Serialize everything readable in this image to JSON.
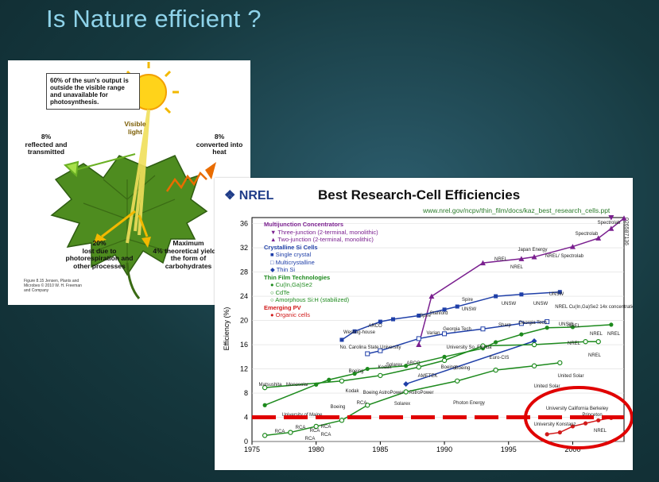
{
  "slide": {
    "title": "Is Nature efficient ?"
  },
  "leaf": {
    "callout": "60% of the sun's output is outside the visible range and unavailable for photosynthesis.",
    "visible_light": "Visible light",
    "reflected_pct": "8%",
    "reflected_text": "reflected and transmitted",
    "heat_pct": "8%",
    "heat_text": "converted into heat",
    "lost_pct": "20%",
    "lost_text": "lost due to photorespiration and other processes",
    "max_title": "Maximum",
    "max_text": "4% theoretical yield in the form of carbohydrates",
    "caption": "Figure 8.15 Jensen, Plants and Microbes © 2010 W. H. Freeman and Company"
  },
  "nrel": {
    "logo": "NREL",
    "title": "Best Research-Cell Efficiencies",
    "url": "www.nrel.gov/ncpv/thin_film/docs/kaz_best_research_cells.ppt",
    "side_id": "026587136",
    "legend": [
      {
        "heading": "Multijunction Concentrators",
        "color": "#7a1f8f",
        "items": [
          "Three-junction (2-terminal, monolithic)",
          "Two-junction (2-terminal, monolithic)"
        ]
      },
      {
        "heading": "Crystalline Si Cells",
        "color": "#1f3fa8",
        "items": [
          "Single crystal",
          "Multicrystalline",
          "Thin Si"
        ]
      },
      {
        "heading": "Thin Film Technologies",
        "color": "#1d8a1d",
        "items": [
          "Cu(In,Ga)Se2",
          "CdTe",
          "Amorphous Si:H (stabilized)"
        ]
      },
      {
        "heading": "Emerging PV",
        "color": "#d11a1a",
        "items": [
          "Organic cells"
        ]
      }
    ]
  },
  "chart_data": {
    "type": "line",
    "title": "Best Research-Cell Efficiencies",
    "xlabel": "",
    "ylabel": "Efficiency (%)",
    "xlim": [
      1975,
      2004
    ],
    "ylim": [
      0,
      37
    ],
    "xticks": [
      "1975",
      "1980",
      "1985",
      "1990",
      "1995",
      "2000"
    ],
    "yticks": [
      "0",
      "4",
      "8",
      "12",
      "16",
      "20",
      "24",
      "28",
      "32",
      "36"
    ],
    "series": [
      {
        "name": "Three-junction (2-terminal, monolithic)",
        "color": "#7a1f8f",
        "points": [
          [
            2003,
            37.0
          ]
        ]
      },
      {
        "name": "Two-junction (2-terminal, monolithic)",
        "color": "#7a1f8f",
        "points": [
          [
            1988,
            16.0
          ],
          [
            1989,
            24.0
          ],
          [
            1993,
            29.5
          ],
          [
            1996,
            30.2
          ],
          [
            1997,
            30.5
          ],
          [
            2000,
            32.2
          ],
          [
            2002,
            33.6
          ],
          [
            2003,
            35.2
          ],
          [
            2004,
            36.9
          ]
        ]
      },
      {
        "name": "Single crystal",
        "color": "#1f3fa8",
        "points": [
          [
            1982,
            16.8
          ],
          [
            1983,
            18.2
          ],
          [
            1985,
            19.8
          ],
          [
            1986,
            20.2
          ],
          [
            1988,
            20.8
          ],
          [
            1990,
            21.8
          ],
          [
            1991,
            22.3
          ],
          [
            1994,
            24.0
          ],
          [
            1996,
            24.3
          ],
          [
            1999,
            24.7
          ]
        ]
      },
      {
        "name": "Multicrystalline",
        "color": "#1f3fa8",
        "points": [
          [
            1984,
            14.5
          ],
          [
            1985,
            15.0
          ],
          [
            1988,
            17.0
          ],
          [
            1990,
            17.8
          ],
          [
            1993,
            18.6
          ],
          [
            1996,
            19.5
          ],
          [
            1998,
            19.8
          ]
        ]
      },
      {
        "name": "Thin Si",
        "color": "#1f3fa8",
        "points": [
          [
            1987,
            9.5
          ],
          [
            1997,
            16.6
          ]
        ]
      },
      {
        "name": "Cu(In,Ga)Se2",
        "color": "#1d8a1d",
        "points": [
          [
            1976,
            6.0
          ],
          [
            1980,
            9.4
          ],
          [
            1981,
            10.2
          ],
          [
            1983,
            11.2
          ],
          [
            1984,
            12.0
          ],
          [
            1987,
            12.5
          ],
          [
            1990,
            14.0
          ],
          [
            1993,
            15.4
          ],
          [
            1994,
            16.4
          ],
          [
            1996,
            17.7
          ],
          [
            1998,
            18.8
          ],
          [
            2000,
            18.9
          ],
          [
            2003,
            19.3
          ]
        ]
      },
      {
        "name": "CdTe",
        "color": "#1d8a1d",
        "points": [
          [
            1976,
            8.9
          ],
          [
            1982,
            10.0
          ],
          [
            1985,
            10.9
          ],
          [
            1988,
            12.3
          ],
          [
            1990,
            13.4
          ],
          [
            1993,
            15.8
          ],
          [
            1997,
            16.0
          ],
          [
            2001,
            16.5
          ],
          [
            2002,
            16.5
          ]
        ]
      },
      {
        "name": "Amorphous Si:H (stabilized)",
        "color": "#1d8a1d",
        "points": [
          [
            1976,
            1.0
          ],
          [
            1978,
            1.5
          ],
          [
            1980,
            2.5
          ],
          [
            1982,
            3.5
          ],
          [
            1984,
            6.0
          ],
          [
            1987,
            8.2
          ],
          [
            1991,
            10.0
          ],
          [
            1994,
            11.8
          ],
          [
            1997,
            12.5
          ],
          [
            1999,
            13.0
          ]
        ]
      },
      {
        "name": "Organic cells",
        "color": "#d11a1a",
        "points": [
          [
            1998,
            1.2
          ],
          [
            1999,
            1.5
          ],
          [
            2000,
            2.5
          ],
          [
            2001,
            3.0
          ],
          [
            2002,
            3.5
          ],
          [
            2003,
            3.9
          ]
        ]
      }
    ],
    "annotations": [
      "Spectrolab",
      "Spectrolab",
      "Japan Energy",
      "NREL",
      "NREL",
      "NREL/ Spectrolab",
      "Spire",
      "UNSW",
      "UNSW",
      "UNSW",
      "UNSW",
      "Spire",
      "Stanford",
      "Westing-house",
      "ARCO",
      "Varian",
      "Georgia Tech",
      "Sharp",
      "Georgia Tech",
      "UNSW",
      "NREL",
      "NREL Cu(In,Ga)Se2 14x concentration",
      "NREL",
      "NREL",
      "No. Carolina State University",
      "Solarex",
      "University So. Florida",
      "Euro-CIS",
      "NREL",
      "NREL",
      "AstroPower",
      "Kodak",
      "ARCO",
      "Boeing",
      "Boeing",
      "AMETEK",
      "United Solar",
      "United Solar",
      "Boeing",
      "Matsushita",
      "Monosolar",
      "Kodak",
      "Boeing",
      "AstroPower",
      "Solarex",
      "Photon Energy",
      "Boeing",
      "RCA",
      "University of Maine",
      "RCA",
      "RCA",
      "RCA",
      "RCA",
      "RCA",
      "RCA",
      "University Konstanz",
      "University California Berkeley",
      "Princeton",
      "NREL"
    ]
  }
}
